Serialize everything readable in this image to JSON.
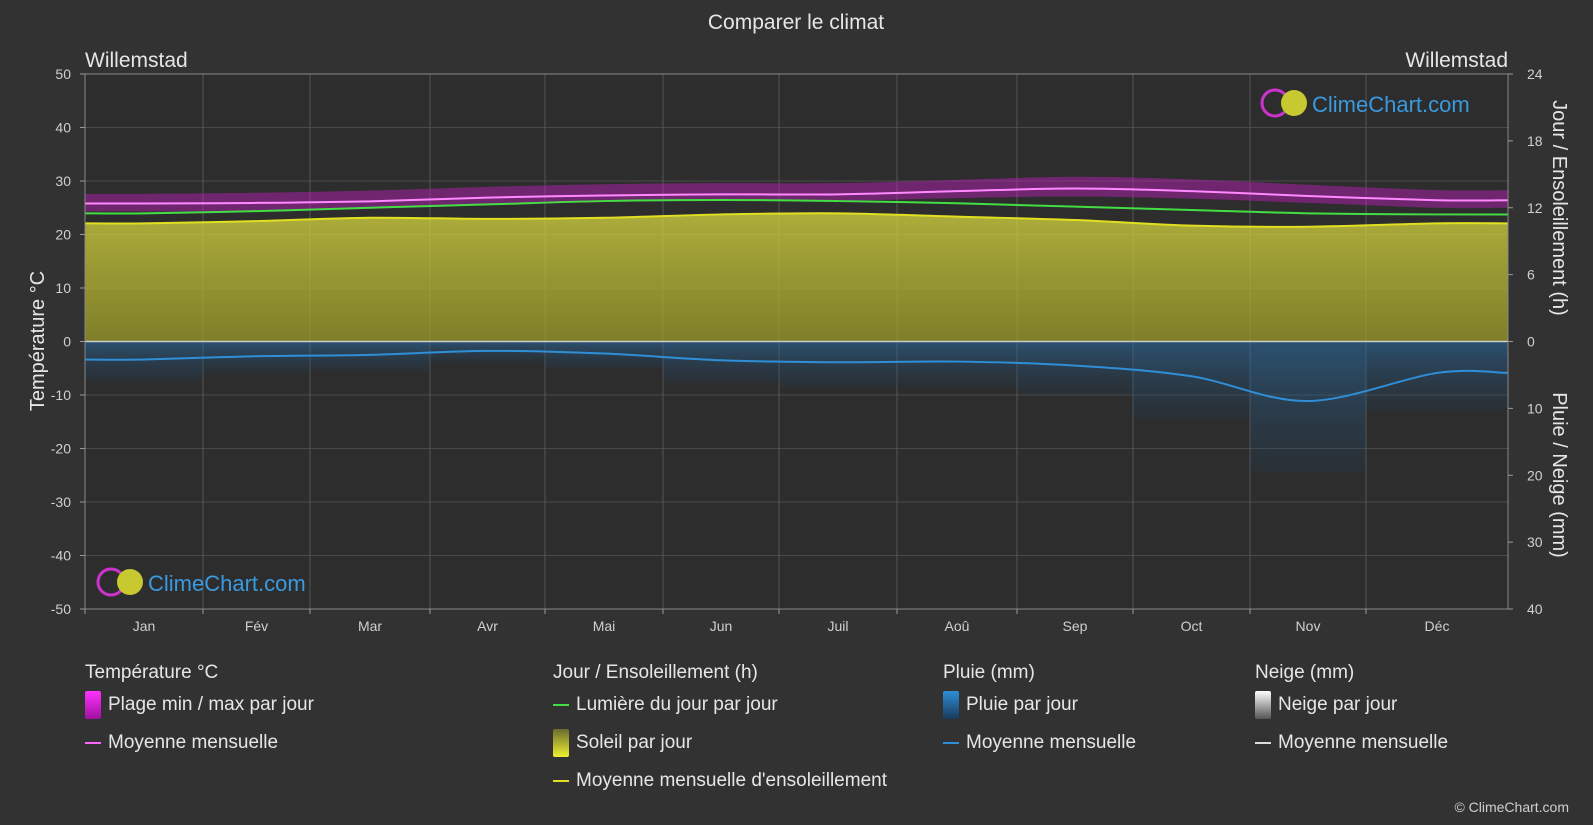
{
  "title": "Comparer le climat",
  "location_left": "Willemstad",
  "location_right": "Willemstad",
  "brand": "ClimeChart.com",
  "copyright": "© ClimeChart.com",
  "chart_data": {
    "type": "area",
    "title": "Comparer le climat",
    "categories": [
      "Jan",
      "Fév",
      "Mar",
      "Avr",
      "Mai",
      "Jun",
      "Juil",
      "Aoû",
      "Sep",
      "Oct",
      "Nov",
      "Déc"
    ],
    "y_left": {
      "label": "Température °C",
      "range": [
        -50,
        50
      ],
      "ticks": [
        50,
        40,
        30,
        20,
        10,
        0,
        -10,
        -20,
        -30,
        -40,
        -50
      ]
    },
    "y_right_top": {
      "label": "Jour / Ensoleillement (h)",
      "range": [
        0,
        24
      ],
      "ticks": [
        24,
        18,
        12,
        6,
        0
      ]
    },
    "y_right_bottom": {
      "label": "Pluie / Neige (mm)",
      "range": [
        0,
        40
      ],
      "ticks": [
        0,
        10,
        20,
        30,
        40
      ]
    },
    "grid": true,
    "series": [
      {
        "name": "Moyenne mensuelle",
        "group": "Température °C",
        "unit": "°C",
        "color": "#ff66ff",
        "values": [
          25.8,
          25.9,
          26.2,
          26.9,
          27.3,
          27.5,
          27.5,
          28.1,
          28.6,
          28.1,
          27.2,
          26.4
        ]
      },
      {
        "name": "Plage min / max par jour",
        "group": "Température °C",
        "unit": "°C",
        "color": "#d020d0",
        "min": [
          24.3,
          24.4,
          24.8,
          25.5,
          26.1,
          26.3,
          26.3,
          26.8,
          27.1,
          26.7,
          25.9,
          25.0
        ],
        "max": [
          27.6,
          27.8,
          28.2,
          28.9,
          29.4,
          29.6,
          29.6,
          30.2,
          30.8,
          30.3,
          29.3,
          28.3
        ]
      },
      {
        "name": "Lumière du jour par jour",
        "group": "Jour / Ensoleillement (h)",
        "unit": "h",
        "color": "#44dd44",
        "values": [
          11.5,
          11.7,
          12.0,
          12.3,
          12.6,
          12.7,
          12.6,
          12.4,
          12.1,
          11.8,
          11.5,
          11.4
        ]
      },
      {
        "name": "Moyenne mensuelle d'ensoleillement",
        "group": "Jour / Ensoleillement (h)",
        "unit": "h",
        "color": "#e0e020",
        "values": [
          10.6,
          10.8,
          11.1,
          11.0,
          11.1,
          11.4,
          11.5,
          11.2,
          10.9,
          10.4,
          10.3,
          10.6
        ]
      },
      {
        "name": "Moyenne mensuelle",
        "group": "Pluie (mm)",
        "unit": "mm",
        "color": "#2e8fd8",
        "values": [
          2.7,
          2.2,
          2.0,
          1.4,
          1.8,
          2.8,
          3.1,
          3.0,
          3.6,
          5.2,
          8.9,
          4.7
        ]
      }
    ]
  },
  "legend": {
    "temp": {
      "title": "Température °C",
      "range": "Plage min / max par jour",
      "mean": "Moyenne mensuelle",
      "range_color": "#d020d0",
      "mean_color": "#ff66ff"
    },
    "sun": {
      "title": "Jour / Ensoleillement (h)",
      "daylight": "Lumière du jour par jour",
      "sunshine": "Soleil par jour",
      "sun_mean": "Moyenne mensuelle d'ensoleillement",
      "daylight_color": "#44dd44",
      "sun_color": "#e0e020"
    },
    "rain": {
      "title": "Pluie (mm)",
      "daily": "Pluie par jour",
      "mean": "Moyenne mensuelle",
      "color": "#2e8fd8"
    },
    "snow": {
      "title": "Neige (mm)",
      "daily": "Neige par jour",
      "mean": "Moyenne mensuelle",
      "color": "#dddddd"
    }
  }
}
